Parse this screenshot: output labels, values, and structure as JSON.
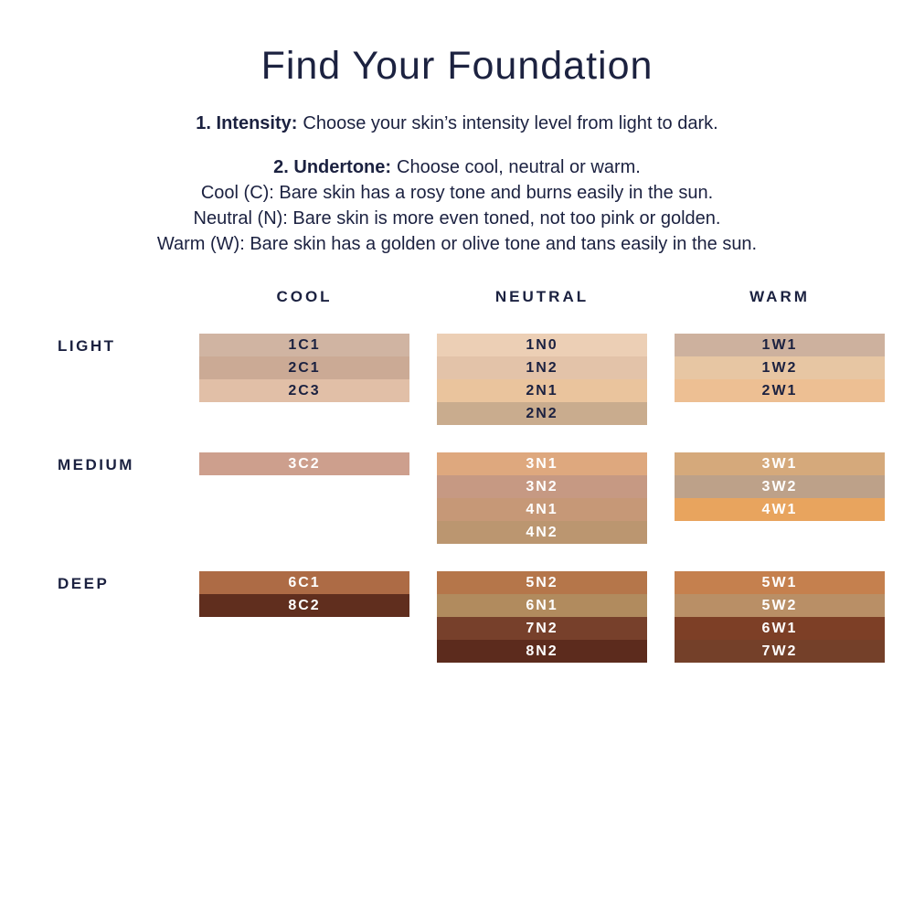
{
  "title": "Find Your Foundation",
  "intro": {
    "step1_label": "1. Intensity:",
    "step1_text": "Choose your skin’s intensity level from light to dark.",
    "step2_label": "2. Undertone:",
    "step2_text": "Choose cool, neutral or warm.",
    "undertone_lines": [
      "Cool (C): Bare skin has a rosy tone and burns easily in the sun.",
      "Neutral (N): Bare skin is more even toned, not too pink or golden.",
      "Warm (W): Bare skin has a golden or olive tone and tans easily in the sun."
    ]
  },
  "palette": {
    "text_dark": "#1b2140",
    "text_light": "#ffffff",
    "background": "#ffffff"
  },
  "chart_data": {
    "type": "table",
    "title": "Foundation shade chart",
    "columns": [
      "COOL",
      "NEUTRAL",
      "WARM"
    ],
    "rows": [
      {
        "label": "LIGHT",
        "code_text_color": "#1b2140",
        "cells": {
          "COOL": [
            {
              "code": "1C1",
              "color": "#d0b4a2"
            },
            {
              "code": "2C1",
              "color": "#cbaa95"
            },
            {
              "code": "2C3",
              "color": "#e1bfa7"
            }
          ],
          "NEUTRAL": [
            {
              "code": "1N0",
              "color": "#eccfb5"
            },
            {
              "code": "1N2",
              "color": "#e3c3a9"
            },
            {
              "code": "2N1",
              "color": "#eac49d"
            },
            {
              "code": "2N2",
              "color": "#c9ac8e"
            }
          ],
          "WARM": [
            {
              "code": "1W1",
              "color": "#cdb19e"
            },
            {
              "code": "1W2",
              "color": "#e7c6a3"
            },
            {
              "code": "2W1",
              "color": "#edbf93"
            }
          ]
        }
      },
      {
        "label": "MEDIUM",
        "code_text_color": "#ffffff",
        "cells": {
          "COOL": [
            {
              "code": "3C2",
              "color": "#cd9f8d"
            }
          ],
          "NEUTRAL": [
            {
              "code": "3N1",
              "color": "#dea87e"
            },
            {
              "code": "3N2",
              "color": "#c69983"
            },
            {
              "code": "4N1",
              "color": "#c69877"
            },
            {
              "code": "4N2",
              "color": "#bb9670"
            }
          ],
          "WARM": [
            {
              "code": "3W1",
              "color": "#d5a97b"
            },
            {
              "code": "3W2",
              "color": "#bda189"
            },
            {
              "code": "4W1",
              "color": "#e8a45e"
            }
          ]
        }
      },
      {
        "label": "DEEP",
        "code_text_color": "#ffffff",
        "cells": {
          "COOL": [
            {
              "code": "6C1",
              "color": "#ad6b45"
            },
            {
              "code": "8C2",
              "color": "#602e1e"
            }
          ],
          "NEUTRAL": [
            {
              "code": "5N2",
              "color": "#b5764a"
            },
            {
              "code": "6N1",
              "color": "#b18b5e"
            },
            {
              "code": "7N2",
              "color": "#77402b"
            },
            {
              "code": "8N2",
              "color": "#5c2b1d"
            }
          ],
          "WARM": [
            {
              "code": "5W1",
              "color": "#c5804e"
            },
            {
              "code": "5W2",
              "color": "#b98f66"
            },
            {
              "code": "6W1",
              "color": "#7d3f26"
            },
            {
              "code": "7W2",
              "color": "#744029"
            }
          ]
        }
      }
    ]
  }
}
